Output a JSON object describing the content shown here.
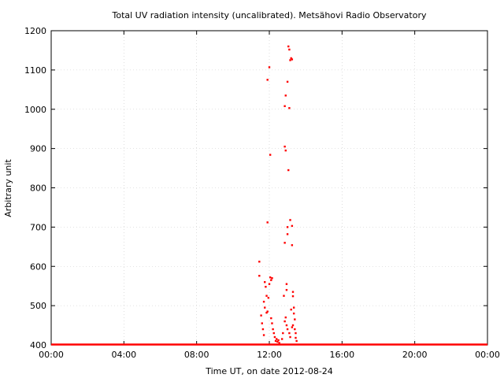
{
  "chart_data": {
    "type": "scatter",
    "title": "Total UV radiation intensity (uncalibrated). Metsähovi Radio Observatory",
    "xlabel": "Time UT, on date 2012-08-24",
    "ylabel": "Arbitrary unit",
    "xlim": [
      0,
      24
    ],
    "ylim": [
      400,
      1200
    ],
    "x_ticks": [
      {
        "value": 0,
        "label": "00:00"
      },
      {
        "value": 4,
        "label": "04:00"
      },
      {
        "value": 8,
        "label": "08:00"
      },
      {
        "value": 12,
        "label": "12:00"
      },
      {
        "value": 16,
        "label": "16:00"
      },
      {
        "value": 20,
        "label": "20:00"
      },
      {
        "value": 24,
        "label": "00:00"
      }
    ],
    "y_ticks": [
      {
        "value": 400,
        "label": "400"
      },
      {
        "value": 500,
        "label": "500"
      },
      {
        "value": 600,
        "label": "600"
      },
      {
        "value": 700,
        "label": "700"
      },
      {
        "value": 800,
        "label": "800"
      },
      {
        "value": 900,
        "label": "900"
      },
      {
        "value": 1000,
        "label": "1000"
      },
      {
        "value": 1100,
        "label": "1100"
      },
      {
        "value": 1200,
        "label": "1200"
      }
    ],
    "grid": true,
    "marker_color": "#ff0000",
    "baseline": {
      "value": 401,
      "x_start": 0,
      "x_end": 24
    },
    "points": [
      [
        11.45,
        612
      ],
      [
        11.45,
        576
      ],
      [
        11.55,
        475
      ],
      [
        11.6,
        455
      ],
      [
        11.65,
        440
      ],
      [
        11.7,
        425
      ],
      [
        11.75,
        560
      ],
      [
        11.8,
        548
      ],
      [
        11.85,
        525
      ],
      [
        11.9,
        485
      ],
      [
        11.85,
        482
      ],
      [
        11.9,
        712
      ],
      [
        11.9,
        1075
      ],
      [
        12.0,
        1107
      ],
      [
        12.05,
        884
      ],
      [
        12.05,
        572
      ],
      [
        12.1,
        565
      ],
      [
        12.0,
        555
      ],
      [
        12.15,
        570
      ],
      [
        12.1,
        468
      ],
      [
        12.15,
        455
      ],
      [
        12.2,
        440
      ],
      [
        12.25,
        430
      ],
      [
        12.3,
        420
      ],
      [
        12.35,
        410
      ],
      [
        12.4,
        415
      ],
      [
        12.45,
        408
      ],
      [
        12.5,
        412
      ],
      [
        12.55,
        405
      ],
      [
        12.8,
        525
      ],
      [
        12.85,
        660
      ],
      [
        12.85,
        905
      ],
      [
        12.9,
        895
      ],
      [
        12.85,
        1008
      ],
      [
        12.9,
        1035
      ],
      [
        12.95,
        555
      ],
      [
        12.95,
        540
      ],
      [
        13.0,
        700
      ],
      [
        13.0,
        682
      ],
      [
        13.0,
        1070
      ],
      [
        13.05,
        1160
      ],
      [
        13.1,
        1152
      ],
      [
        13.05,
        845
      ],
      [
        13.1,
        1003
      ],
      [
        13.15,
        1125
      ],
      [
        13.2,
        1130
      ],
      [
        13.25,
        1127
      ],
      [
        13.15,
        718
      ],
      [
        13.25,
        703
      ],
      [
        13.25,
        654
      ],
      [
        13.3,
        535
      ],
      [
        13.3,
        524
      ],
      [
        13.35,
        495
      ],
      [
        13.35,
        480
      ],
      [
        13.4,
        465
      ],
      [
        13.3,
        450
      ],
      [
        13.25,
        445
      ],
      [
        13.2,
        490
      ],
      [
        13.4,
        440
      ],
      [
        13.45,
        430
      ],
      [
        13.45,
        418
      ],
      [
        13.5,
        410
      ],
      [
        12.9,
        470
      ],
      [
        12.85,
        460
      ],
      [
        12.95,
        450
      ],
      [
        13.0,
        440
      ],
      [
        13.1,
        430
      ],
      [
        13.15,
        420
      ],
      [
        12.75,
        430
      ],
      [
        12.7,
        415
      ],
      [
        11.95,
        520
      ],
      [
        11.7,
        510
      ],
      [
        11.75,
        495
      ]
    ]
  }
}
